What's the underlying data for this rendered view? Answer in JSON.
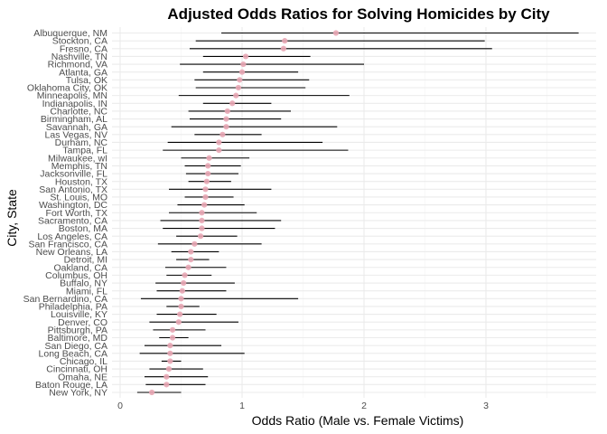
{
  "chart_data": {
    "type": "scatter",
    "title": "Adjusted Odds Ratios for Solving Homicides by City",
    "xlabel": "Odds Ratio (Male vs. Female Victims)",
    "ylabel": "City, State",
    "xlim": [
      0,
      3.9
    ],
    "xticks": [
      "0",
      "1",
      "2",
      "3"
    ],
    "grid": true,
    "point_color": "#e8a6b4",
    "errorbar_color": "#000000",
    "cities": [
      {
        "city": "Albuquerque, NM",
        "or": 1.77,
        "lo": 0.83,
        "hi": 3.76
      },
      {
        "city": "Stockton, CA",
        "or": 1.35,
        "lo": 0.62,
        "hi": 2.99
      },
      {
        "city": "Fresno, CA",
        "or": 1.34,
        "lo": 0.57,
        "hi": 3.05
      },
      {
        "city": "Nashville, TN",
        "or": 1.03,
        "lo": 0.68,
        "hi": 1.56
      },
      {
        "city": "Richmond, VA",
        "or": 1.01,
        "lo": 0.49,
        "hi": 2.0
      },
      {
        "city": "Atlanta, GA",
        "or": 1.0,
        "lo": 0.68,
        "hi": 1.46
      },
      {
        "city": "Tulsa, OK",
        "or": 0.98,
        "lo": 0.61,
        "hi": 1.55
      },
      {
        "city": "Oklahoma City, OK",
        "or": 0.97,
        "lo": 0.62,
        "hi": 1.52
      },
      {
        "city": "Minneapolis, MN",
        "or": 0.95,
        "lo": 0.48,
        "hi": 1.88
      },
      {
        "city": "Indianapolis, IN",
        "or": 0.92,
        "lo": 0.68,
        "hi": 1.24
      },
      {
        "city": "Charlotte, NC",
        "or": 0.88,
        "lo": 0.56,
        "hi": 1.4
      },
      {
        "city": "Birmingham, AL",
        "or": 0.87,
        "lo": 0.57,
        "hi": 1.32
      },
      {
        "city": "Savannah, GA",
        "or": 0.87,
        "lo": 0.42,
        "hi": 1.78
      },
      {
        "city": "Las Vegas, NV",
        "or": 0.84,
        "lo": 0.61,
        "hi": 1.16
      },
      {
        "city": "Durham, NC",
        "or": 0.81,
        "lo": 0.39,
        "hi": 1.66
      },
      {
        "city": "Tampa, FL",
        "or": 0.81,
        "lo": 0.35,
        "hi": 1.87
      },
      {
        "city": "Milwaukee, wI",
        "or": 0.73,
        "lo": 0.5,
        "hi": 1.06
      },
      {
        "city": "Memphis, TN",
        "or": 0.72,
        "lo": 0.53,
        "hi": 0.99
      },
      {
        "city": "Jacksonville, FL",
        "or": 0.72,
        "lo": 0.54,
        "hi": 0.97
      },
      {
        "city": "Houston, TX",
        "or": 0.71,
        "lo": 0.56,
        "hi": 0.91
      },
      {
        "city": "San Antonio, TX",
        "or": 0.7,
        "lo": 0.4,
        "hi": 1.24
      },
      {
        "city": "St. Louis, MO",
        "or": 0.7,
        "lo": 0.53,
        "hi": 0.93
      },
      {
        "city": "Washington, DC",
        "or": 0.69,
        "lo": 0.47,
        "hi": 1.02
      },
      {
        "city": "Fort Worth, TX",
        "or": 0.67,
        "lo": 0.4,
        "hi": 1.12
      },
      {
        "city": "Sacramento, CA",
        "or": 0.67,
        "lo": 0.33,
        "hi": 1.32
      },
      {
        "city": "Boston, MA",
        "or": 0.67,
        "lo": 0.35,
        "hi": 1.27
      },
      {
        "city": "Los Angeles, CA",
        "or": 0.66,
        "lo": 0.46,
        "hi": 0.96
      },
      {
        "city": "San Francisco, CA",
        "or": 0.61,
        "lo": 0.31,
        "hi": 1.16
      },
      {
        "city": "New Orleans, LA",
        "or": 0.58,
        "lo": 0.42,
        "hi": 0.81
      },
      {
        "city": "Detroit, MI",
        "or": 0.58,
        "lo": 0.46,
        "hi": 0.73
      },
      {
        "city": "Oakland, CA",
        "or": 0.56,
        "lo": 0.37,
        "hi": 0.87
      },
      {
        "city": "Columbus, OH",
        "or": 0.53,
        "lo": 0.38,
        "hi": 0.75
      },
      {
        "city": "Buffalo, NY",
        "or": 0.52,
        "lo": 0.29,
        "hi": 0.94
      },
      {
        "city": "Miami, FL",
        "or": 0.51,
        "lo": 0.3,
        "hi": 0.87
      },
      {
        "city": "San Bernardino, CA",
        "or": 0.5,
        "lo": 0.17,
        "hi": 1.46
      },
      {
        "city": "Philadelphia, PA",
        "or": 0.5,
        "lo": 0.38,
        "hi": 0.65
      },
      {
        "city": "Louisville, KY",
        "or": 0.49,
        "lo": 0.3,
        "hi": 0.79
      },
      {
        "city": "Denver, CO",
        "or": 0.48,
        "lo": 0.24,
        "hi": 0.97
      },
      {
        "city": "Pittsburgh, PA",
        "or": 0.43,
        "lo": 0.27,
        "hi": 0.7
      },
      {
        "city": "Baltimore, MD",
        "or": 0.43,
        "lo": 0.32,
        "hi": 0.56
      },
      {
        "city": "San Diego, CA",
        "or": 0.41,
        "lo": 0.2,
        "hi": 0.83
      },
      {
        "city": "Long Beach, CA",
        "or": 0.41,
        "lo": 0.16,
        "hi": 1.02
      },
      {
        "city": "Chicago, IL",
        "or": 0.41,
        "lo": 0.34,
        "hi": 0.5
      },
      {
        "city": "Cincinnati, OH",
        "or": 0.4,
        "lo": 0.24,
        "hi": 0.68
      },
      {
        "city": "Omaha, NE",
        "or": 0.38,
        "lo": 0.2,
        "hi": 0.72
      },
      {
        "city": "Baton Rouge, LA",
        "or": 0.38,
        "lo": 0.21,
        "hi": 0.7
      },
      {
        "city": "New York, NY",
        "or": 0.26,
        "lo": 0.14,
        "hi": 0.5
      }
    ]
  }
}
